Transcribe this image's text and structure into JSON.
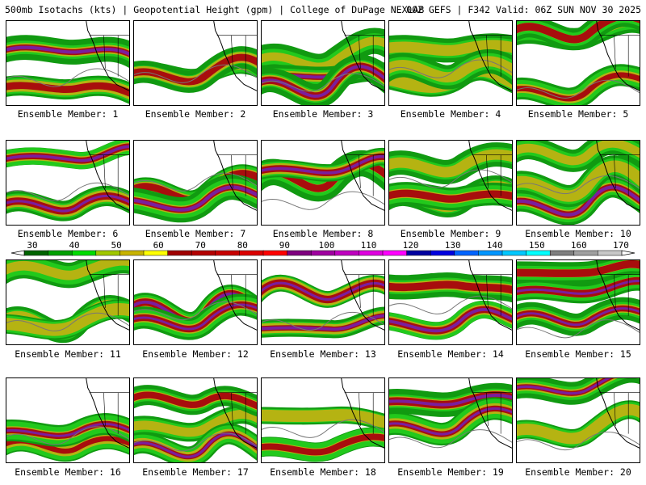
{
  "header": {
    "left": "500mb Isotachs (kts) | Geopotential Height (gpm) | College of DuPage NEXLAB",
    "right": "00Z GEFS | F342 Valid: 06Z SUN NOV 30 2025"
  },
  "panels": [
    {
      "label": "Ensemble Member: 1"
    },
    {
      "label": "Ensemble Member: 2"
    },
    {
      "label": "Ensemble Member: 3"
    },
    {
      "label": "Ensemble Member: 4"
    },
    {
      "label": "Ensemble Member: 5"
    },
    {
      "label": "Ensemble Member: 6"
    },
    {
      "label": "Ensemble Member: 7"
    },
    {
      "label": "Ensemble Member: 8"
    },
    {
      "label": "Ensemble Member: 9"
    },
    {
      "label": "Ensemble Member: 10"
    },
    {
      "label": "Ensemble Member: 11"
    },
    {
      "label": "Ensemble Member: 12"
    },
    {
      "label": "Ensemble Member: 13"
    },
    {
      "label": "Ensemble Member: 14"
    },
    {
      "label": "Ensemble Member: 15"
    },
    {
      "label": "Ensemble Member: 16"
    },
    {
      "label": "Ensemble Member: 17"
    },
    {
      "label": "Ensemble Member: 18"
    },
    {
      "label": "Ensemble Member: 19"
    },
    {
      "label": "Ensemble Member: 20"
    }
  ],
  "legend": {
    "ticks": [
      "30",
      "40",
      "50",
      "60",
      "70",
      "80",
      "90",
      "100",
      "110",
      "120",
      "130",
      "140",
      "150",
      "160",
      "170"
    ],
    "colors": [
      "#006400",
      "#00a000",
      "#00dc00",
      "#a0c800",
      "#c8b400",
      "#ffff00",
      "#a00000",
      "#b40000",
      "#c80000",
      "#dc0000",
      "#ff0000",
      "#800080",
      "#a000a0",
      "#c000c0",
      "#e000e0",
      "#ff00ff",
      "#0000a0",
      "#0000e0",
      "#0064ff",
      "#0096ff",
      "#00c8ff",
      "#00ffff",
      "#808080",
      "#a0a0a0",
      "#c8c8c8"
    ]
  }
}
